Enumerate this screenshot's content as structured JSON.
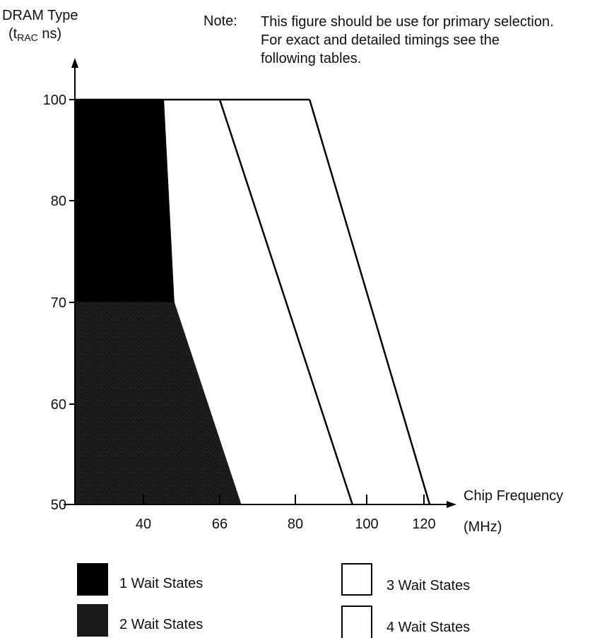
{
  "header": {
    "y_title_line1": "DRAM Type",
    "y_title_line2_prefix": "(t",
    "y_title_line2_sub": "RAC",
    "y_title_line2_suffix": " ns)",
    "note_label": "Note:",
    "note_lines": [
      "This figure should be use for primary selection.",
      "For exact and detailed timings see the",
      "following tables."
    ]
  },
  "x_axis": {
    "label_line1": "Chip Frequency",
    "label_line2": "(MHz)"
  },
  "legend": [
    {
      "label": "1 Wait States",
      "fill": "#000000"
    },
    {
      "label": "2 Wait States",
      "fill": "#1a1a1a"
    },
    {
      "label": "3 Wait States",
      "fill": "#ffffff"
    },
    {
      "label": "4 Wait States",
      "fill": "#ffffff"
    }
  ],
  "chart_data": {
    "type": "area",
    "ylabel": "DRAM Type (tRAC ns)",
    "xlabel": "Chip Frequency (MHz)",
    "y_ticks": [
      100,
      80,
      70,
      60,
      50
    ],
    "x_ticks": [
      "40",
      "66",
      "80",
      "100",
      "120"
    ],
    "grid": false,
    "boundaries": [
      {
        "name": "1 Wait States",
        "points": [
          [
            47,
            100
          ],
          [
            70,
            50
          ]
        ]
      },
      {
        "name": "2 Wait States",
        "points": [
          [
            66,
            100
          ],
          [
            96,
            50
          ]
        ]
      },
      {
        "name": "3 Wait States",
        "points": [
          [
            84,
            100
          ],
          [
            122,
            50
          ]
        ]
      }
    ],
    "regions": [
      {
        "name": "1 Wait States",
        "color": "#000000"
      },
      {
        "name": "2 Wait States",
        "color": "#1a1a1a"
      },
      {
        "name": "3 Wait States",
        "color": "#ffffff"
      },
      {
        "name": "4 Wait States",
        "color": "#ffffff"
      }
    ]
  }
}
